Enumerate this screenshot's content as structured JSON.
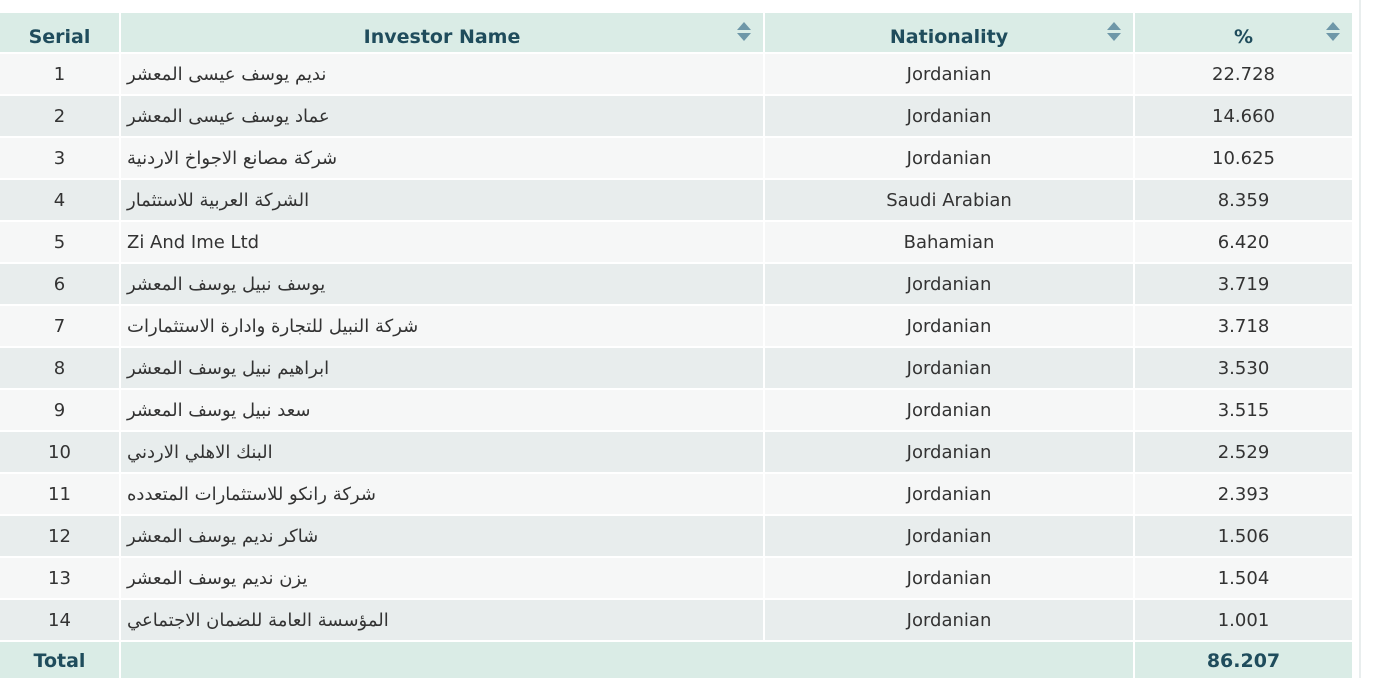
{
  "table": {
    "headers": {
      "serial": "Serial",
      "name": "Investor Name",
      "nationality": "Nationality",
      "percent": "%"
    },
    "rows": [
      {
        "serial": "1",
        "name": "نديم يوسف عيسى المعشر",
        "nationality": "Jordanian",
        "percent": "22.728"
      },
      {
        "serial": "2",
        "name": "عماد يوسف عيسى المعشر",
        "nationality": "Jordanian",
        "percent": "14.660"
      },
      {
        "serial": "3",
        "name": "شركة مصانع الاجواخ الاردنية",
        "nationality": "Jordanian",
        "percent": "10.625"
      },
      {
        "serial": "4",
        "name": "الشركة العربية للاستثمار",
        "nationality": "Saudi Arabian",
        "percent": "8.359"
      },
      {
        "serial": "5",
        "name": "Zi And Ime Ltd",
        "nationality": "Bahamian",
        "percent": "6.420"
      },
      {
        "serial": "6",
        "name": "يوسف نبيل يوسف المعشر",
        "nationality": "Jordanian",
        "percent": "3.719"
      },
      {
        "serial": "7",
        "name": "شركة النبيل للتجارة وادارة الاستثمارات",
        "nationality": "Jordanian",
        "percent": "3.718"
      },
      {
        "serial": "8",
        "name": "ابراهيم نبيل يوسف المعشر",
        "nationality": "Jordanian",
        "percent": "3.530"
      },
      {
        "serial": "9",
        "name": "سعد نبيل يوسف المعشر",
        "nationality": "Jordanian",
        "percent": "3.515"
      },
      {
        "serial": "10",
        "name": "البنك الاهلي الاردني",
        "nationality": "Jordanian",
        "percent": "2.529"
      },
      {
        "serial": "11",
        "name": "شركة رانكو للاستثمارات المتعدده",
        "nationality": "Jordanian",
        "percent": "2.393"
      },
      {
        "serial": "12",
        "name": "شاكر نديم يوسف المعشر",
        "nationality": "Jordanian",
        "percent": "1.506"
      },
      {
        "serial": "13",
        "name": "يزن نديم يوسف المعشر",
        "nationality": "Jordanian",
        "percent": "1.504"
      },
      {
        "serial": "14",
        "name": "المؤسسة العامة للضمان الاجتماعي",
        "nationality": "Jordanian",
        "percent": "1.001"
      }
    ],
    "footer": {
      "label": "Total",
      "value": "86.207"
    }
  },
  "colors": {
    "header_bg": "#daece6",
    "header_text": "#1f4c5c",
    "row_odd": "#f6f7f7",
    "row_even": "#e8eded",
    "sort_icon": "#6e97a8"
  },
  "icons": {
    "sort": "sort-icon"
  }
}
